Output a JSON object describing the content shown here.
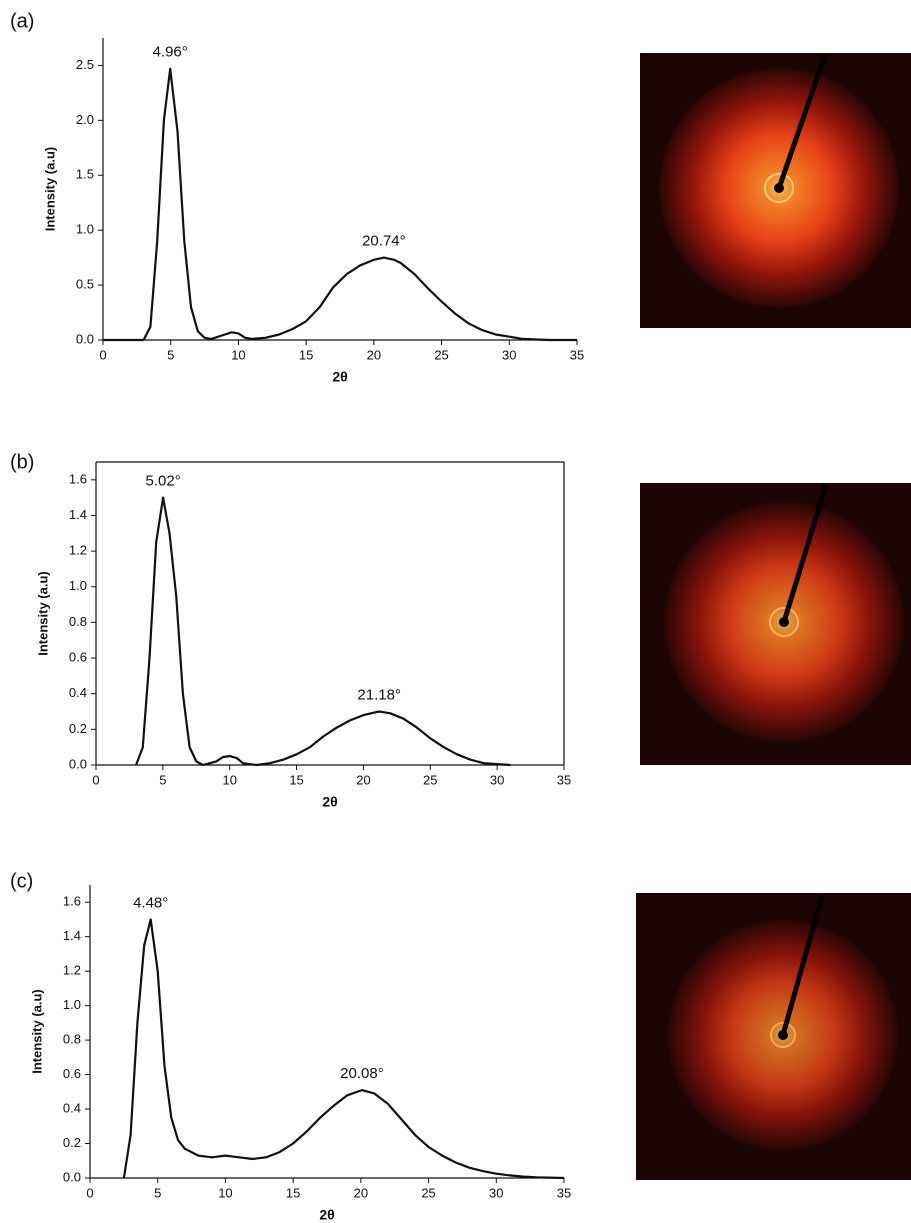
{
  "chart_data": [
    {
      "type": "line",
      "panel": "(a)",
      "xlabel": "2θ",
      "ylabel": "Intensity (a.u)",
      "xlim": [
        0,
        35
      ],
      "ylim": [
        0,
        2.75
      ],
      "xticks": [
        0,
        5,
        10,
        15,
        20,
        25,
        30,
        35
      ],
      "yticks": [
        {
          "value": 0,
          "label": "0.0"
        },
        0.5,
        {
          "value": 1,
          "label": "1.0"
        },
        1.5,
        {
          "value": 2,
          "label": "2.0"
        },
        2.5
      ],
      "color": "#111111",
      "x": [
        0,
        3,
        3.5,
        4,
        4.5,
        4.96,
        5.5,
        6,
        6.5,
        7,
        7.5,
        8,
        9,
        9.5,
        10,
        10.5,
        11,
        12,
        13,
        14,
        15,
        16,
        17,
        18,
        19,
        20,
        20.74,
        21.5,
        22,
        23,
        24,
        25,
        26,
        27,
        28,
        29,
        30,
        31,
        32,
        33,
        35
      ],
      "values": [
        0,
        0,
        0.12,
        0.9,
        2.0,
        2.47,
        1.9,
        0.9,
        0.3,
        0.08,
        0.02,
        0.01,
        0.05,
        0.07,
        0.06,
        0.02,
        0.01,
        0.02,
        0.05,
        0.1,
        0.17,
        0.3,
        0.48,
        0.6,
        0.68,
        0.73,
        0.75,
        0.73,
        0.7,
        0.6,
        0.47,
        0.35,
        0.24,
        0.15,
        0.09,
        0.05,
        0.03,
        0.01,
        0.005,
        0,
        0
      ],
      "annotations": [
        {
          "text": "4.96°",
          "x": 4.96,
          "y": 2.47
        },
        {
          "text": "20.74°",
          "x": 20.74,
          "y": 0.75
        }
      ]
    },
    {
      "type": "line",
      "panel": "(b)",
      "xlabel": "2θ",
      "ylabel": "Intensity (a.u)",
      "xlim": [
        0,
        35
      ],
      "ylim": [
        0,
        1.7
      ],
      "xticks": [
        0,
        5,
        10,
        15,
        20,
        25,
        30,
        35
      ],
      "yticks": [
        {
          "value": 0,
          "label": "0.0"
        },
        0.2,
        0.4,
        0.6,
        0.8,
        {
          "value": 1,
          "label": "1.0"
        },
        1.2,
        1.4,
        1.6
      ],
      "color": "#111111",
      "x": [
        3,
        3.5,
        4,
        4.5,
        5.02,
        5.5,
        6,
        6.5,
        7,
        7.5,
        8,
        9,
        9.5,
        10,
        10.5,
        11,
        12,
        13,
        14,
        15,
        16,
        17,
        18,
        19,
        20,
        21.18,
        22,
        23,
        24,
        25,
        26,
        27,
        28,
        29,
        30,
        31
      ],
      "values": [
        0,
        0.1,
        0.6,
        1.25,
        1.5,
        1.3,
        0.95,
        0.4,
        0.1,
        0.02,
        0,
        0.02,
        0.045,
        0.05,
        0.04,
        0.01,
        0,
        0.01,
        0.03,
        0.06,
        0.1,
        0.16,
        0.21,
        0.25,
        0.28,
        0.3,
        0.29,
        0.26,
        0.21,
        0.15,
        0.1,
        0.06,
        0.03,
        0.01,
        0.005,
        0
      ],
      "annotations": [
        {
          "text": "5.02°",
          "x": 5.02,
          "y": 1.5
        },
        {
          "text": "21.18°",
          "x": 21.18,
          "y": 0.3
        }
      ]
    },
    {
      "type": "line",
      "panel": "(c)",
      "xlabel": "2θ",
      "ylabel": "Intensity (a.u)",
      "xlim": [
        0,
        35
      ],
      "ylim": [
        0,
        1.7
      ],
      "xticks": [
        0,
        5,
        10,
        15,
        20,
        25,
        30,
        35
      ],
      "yticks": [
        {
          "value": 0,
          "label": "0.0"
        },
        0.2,
        0.4,
        0.6,
        0.8,
        {
          "value": 1,
          "label": "1.0"
        },
        1.2,
        1.4,
        1.6
      ],
      "color": "#111111",
      "x": [
        2.5,
        3,
        3.5,
        4,
        4.48,
        5,
        5.5,
        6,
        6.5,
        7,
        8,
        9,
        10,
        11,
        12,
        13,
        14,
        15,
        16,
        17,
        18,
        19,
        20.08,
        21,
        22,
        23,
        24,
        25,
        26,
        27,
        28,
        29,
        30,
        31,
        32,
        33,
        35
      ],
      "values": [
        0,
        0.25,
        0.9,
        1.35,
        1.5,
        1.2,
        0.65,
        0.35,
        0.22,
        0.17,
        0.13,
        0.12,
        0.13,
        0.12,
        0.11,
        0.12,
        0.15,
        0.2,
        0.27,
        0.35,
        0.42,
        0.48,
        0.51,
        0.49,
        0.43,
        0.34,
        0.25,
        0.18,
        0.13,
        0.09,
        0.06,
        0.04,
        0.025,
        0.015,
        0.008,
        0.004,
        0
      ],
      "annotations": [
        {
          "text": "4.48°",
          "x": 4.48,
          "y": 1.5
        },
        {
          "text": "20.08°",
          "x": 20.08,
          "y": 0.51
        }
      ]
    }
  ]
}
